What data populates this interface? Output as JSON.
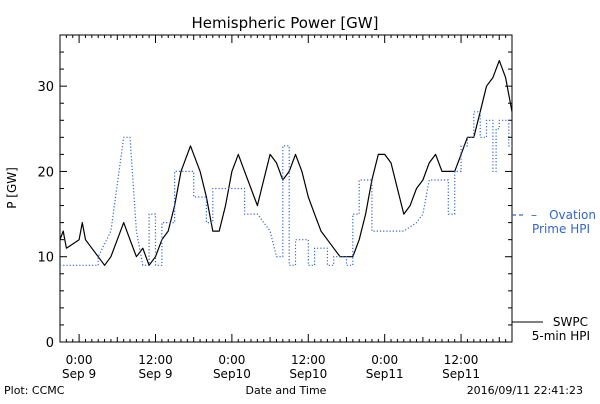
{
  "chart_data": {
    "type": "line",
    "title": "Hemispheric Power [GW]",
    "xlabel": "Date and Time",
    "ylabel": "P [GW]",
    "xlim": [
      "2016-09-08T21:00",
      "2016-09-11T20:00"
    ],
    "ylim": [
      0,
      36
    ],
    "x_ticks": [
      {
        "time": "2016-09-09T00:00",
        "line1": "0:00",
        "line2": "Sep 9"
      },
      {
        "time": "2016-09-09T12:00",
        "line1": "12:00",
        "line2": "Sep 9"
      },
      {
        "time": "2016-09-10T00:00",
        "line1": "0:00",
        "line2": "Sep10"
      },
      {
        "time": "2016-09-10T12:00",
        "line1": "12:00",
        "line2": "Sep10"
      },
      {
        "time": "2016-09-11T00:00",
        "line1": "0:00",
        "line2": "Sep11"
      },
      {
        "time": "2016-09-11T12:00",
        "line1": "12:00",
        "line2": "Sep11"
      }
    ],
    "y_ticks": [
      0,
      10,
      20,
      30
    ],
    "grid": false,
    "legend_placement": "right",
    "series": [
      {
        "name_lines": [
          "SWPC",
          "5-min HPI"
        ],
        "color": "#000000",
        "style": "solid",
        "points": [
          [
            "2016-09-08T21:00",
            12
          ],
          [
            "2016-09-08T21:30",
            13
          ],
          [
            "2016-09-08T22:00",
            11
          ],
          [
            "2016-09-09T00:00",
            12
          ],
          [
            "2016-09-09T00:30",
            14
          ],
          [
            "2016-09-09T01:00",
            12
          ],
          [
            "2016-09-09T02:00",
            11
          ],
          [
            "2016-09-09T03:00",
            10
          ],
          [
            "2016-09-09T04:00",
            9
          ],
          [
            "2016-09-09T05:00",
            10
          ],
          [
            "2016-09-09T06:00",
            12
          ],
          [
            "2016-09-09T07:00",
            14
          ],
          [
            "2016-09-09T08:00",
            12
          ],
          [
            "2016-09-09T09:00",
            10
          ],
          [
            "2016-09-09T10:00",
            11
          ],
          [
            "2016-09-09T11:00",
            9
          ],
          [
            "2016-09-09T12:00",
            10
          ],
          [
            "2016-09-09T13:00",
            12
          ],
          [
            "2016-09-09T14:00",
            13
          ],
          [
            "2016-09-09T15:00",
            16
          ],
          [
            "2016-09-09T16:00",
            20
          ],
          [
            "2016-09-09T17:00",
            22
          ],
          [
            "2016-09-09T17:30",
            23
          ],
          [
            "2016-09-09T18:00",
            22
          ],
          [
            "2016-09-09T19:00",
            20
          ],
          [
            "2016-09-09T20:00",
            17
          ],
          [
            "2016-09-09T21:00",
            13
          ],
          [
            "2016-09-09T22:00",
            13
          ],
          [
            "2016-09-09T23:00",
            16
          ],
          [
            "2016-09-10T00:00",
            20
          ],
          [
            "2016-09-10T01:00",
            22
          ],
          [
            "2016-09-10T02:00",
            20
          ],
          [
            "2016-09-10T03:00",
            18
          ],
          [
            "2016-09-10T04:00",
            16
          ],
          [
            "2016-09-10T05:00",
            19
          ],
          [
            "2016-09-10T06:00",
            22
          ],
          [
            "2016-09-10T07:00",
            21
          ],
          [
            "2016-09-10T08:00",
            19
          ],
          [
            "2016-09-10T09:00",
            20
          ],
          [
            "2016-09-10T10:00",
            22
          ],
          [
            "2016-09-10T11:00",
            20
          ],
          [
            "2016-09-10T12:00",
            17
          ],
          [
            "2016-09-10T13:00",
            15
          ],
          [
            "2016-09-10T14:00",
            13
          ],
          [
            "2016-09-10T15:00",
            12
          ],
          [
            "2016-09-10T16:00",
            11
          ],
          [
            "2016-09-10T17:00",
            10
          ],
          [
            "2016-09-10T18:00",
            10
          ],
          [
            "2016-09-10T19:00",
            10
          ],
          [
            "2016-09-10T20:00",
            12
          ],
          [
            "2016-09-10T21:00",
            15
          ],
          [
            "2016-09-10T22:00",
            19
          ],
          [
            "2016-09-10T23:00",
            22
          ],
          [
            "2016-09-11T00:00",
            22
          ],
          [
            "2016-09-11T01:00",
            21
          ],
          [
            "2016-09-11T02:00",
            18
          ],
          [
            "2016-09-11T03:00",
            15
          ],
          [
            "2016-09-11T04:00",
            16
          ],
          [
            "2016-09-11T05:00",
            18
          ],
          [
            "2016-09-11T06:00",
            19
          ],
          [
            "2016-09-11T07:00",
            21
          ],
          [
            "2016-09-11T08:00",
            22
          ],
          [
            "2016-09-11T09:00",
            20
          ],
          [
            "2016-09-11T10:00",
            20
          ],
          [
            "2016-09-11T11:00",
            20
          ],
          [
            "2016-09-11T12:00",
            22
          ],
          [
            "2016-09-11T13:00",
            24
          ],
          [
            "2016-09-11T14:00",
            24
          ],
          [
            "2016-09-11T15:00",
            27
          ],
          [
            "2016-09-11T16:00",
            30
          ],
          [
            "2016-09-11T17:00",
            31
          ],
          [
            "2016-09-11T18:00",
            33
          ],
          [
            "2016-09-11T19:00",
            31
          ],
          [
            "2016-09-11T20:00",
            27
          ]
        ]
      },
      {
        "name_lines": [
          "Ovation",
          "Prime HPI"
        ],
        "color": "#3366cc",
        "style": "dotted",
        "points": [
          [
            "2016-09-08T21:00",
            9
          ],
          [
            "2016-09-09T03:00",
            9
          ],
          [
            "2016-09-09T03:00",
            10
          ],
          [
            "2016-09-09T05:00",
            13
          ],
          [
            "2016-09-09T07:00",
            24
          ],
          [
            "2016-09-09T08:00",
            24
          ],
          [
            "2016-09-09T09:00",
            13
          ],
          [
            "2016-09-09T10:00",
            9
          ],
          [
            "2016-09-09T11:00",
            9
          ],
          [
            "2016-09-09T11:00",
            15
          ],
          [
            "2016-09-09T12:00",
            15
          ],
          [
            "2016-09-09T12:00",
            9
          ],
          [
            "2016-09-09T13:00",
            9
          ],
          [
            "2016-09-09T13:00",
            14
          ],
          [
            "2016-09-09T15:00",
            14
          ],
          [
            "2016-09-09T15:00",
            20
          ],
          [
            "2016-09-09T18:00",
            20
          ],
          [
            "2016-09-09T18:00",
            17
          ],
          [
            "2016-09-09T20:00",
            17
          ],
          [
            "2016-09-09T20:00",
            14
          ],
          [
            "2016-09-09T21:00",
            14
          ],
          [
            "2016-09-09T21:00",
            18
          ],
          [
            "2016-09-10T02:00",
            18
          ],
          [
            "2016-09-10T02:00",
            15
          ],
          [
            "2016-09-10T04:00",
            15
          ],
          [
            "2016-09-10T06:00",
            13
          ],
          [
            "2016-09-10T07:00",
            10
          ],
          [
            "2016-09-10T08:00",
            10
          ],
          [
            "2016-09-10T08:00",
            23
          ],
          [
            "2016-09-10T09:00",
            23
          ],
          [
            "2016-09-10T09:00",
            9
          ],
          [
            "2016-09-10T10:00",
            9
          ],
          [
            "2016-09-10T10:00",
            12
          ],
          [
            "2016-09-10T12:00",
            12
          ],
          [
            "2016-09-10T12:00",
            9
          ],
          [
            "2016-09-10T13:00",
            9
          ],
          [
            "2016-09-10T13:00",
            11
          ],
          [
            "2016-09-10T15:00",
            11
          ],
          [
            "2016-09-10T15:00",
            9
          ],
          [
            "2016-09-10T16:00",
            9
          ],
          [
            "2016-09-10T16:00",
            10
          ],
          [
            "2016-09-10T18:00",
            10
          ],
          [
            "2016-09-10T18:00",
            9
          ],
          [
            "2016-09-10T19:00",
            9
          ],
          [
            "2016-09-10T19:00",
            15
          ],
          [
            "2016-09-10T20:00",
            15
          ],
          [
            "2016-09-10T20:00",
            19
          ],
          [
            "2016-09-10T22:00",
            19
          ],
          [
            "2016-09-10T22:00",
            13
          ],
          [
            "2016-09-11T03:00",
            13
          ],
          [
            "2016-09-11T05:00",
            14
          ],
          [
            "2016-09-11T06:00",
            15
          ],
          [
            "2016-09-11T07:00",
            19
          ],
          [
            "2016-09-11T10:00",
            19
          ],
          [
            "2016-09-11T10:00",
            15
          ],
          [
            "2016-09-11T11:00",
            15
          ],
          [
            "2016-09-11T11:00",
            20
          ],
          [
            "2016-09-11T12:00",
            20
          ],
          [
            "2016-09-11T12:00",
            23
          ],
          [
            "2016-09-11T13:00",
            23
          ],
          [
            "2016-09-11T13:00",
            24
          ],
          [
            "2016-09-11T14:00",
            24
          ],
          [
            "2016-09-11T14:00",
            27
          ],
          [
            "2016-09-11T15:00",
            27
          ],
          [
            "2016-09-11T15:00",
            24
          ],
          [
            "2016-09-11T16:00",
            24
          ],
          [
            "2016-09-11T16:00",
            26
          ],
          [
            "2016-09-11T17:00",
            26
          ],
          [
            "2016-09-11T17:00",
            20
          ],
          [
            "2016-09-11T17:30",
            20
          ],
          [
            "2016-09-11T17:30",
            25
          ],
          [
            "2016-09-11T18:00",
            25
          ],
          [
            "2016-09-11T18:00",
            26
          ],
          [
            "2016-09-11T19:30",
            26
          ],
          [
            "2016-09-11T19:30",
            23
          ],
          [
            "2016-09-11T20:00",
            23
          ]
        ]
      }
    ]
  },
  "footer": {
    "left": "Plot: CCMC",
    "center": "Date and Time",
    "right": "2016/09/11  22:41:23"
  }
}
